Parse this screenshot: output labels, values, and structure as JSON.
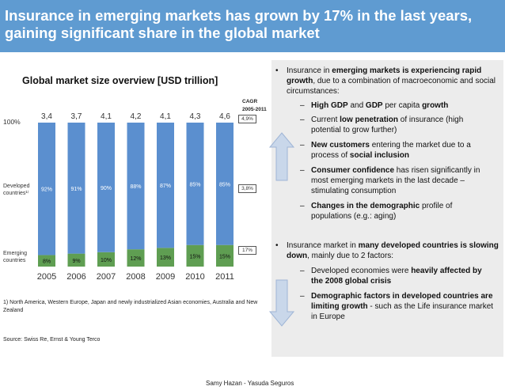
{
  "title": {
    "line1": "Insurance in emerging markets has grown by 17% in the last years,",
    "line2": "gaining significant share in the global market"
  },
  "colors": {
    "title_bg": "#5f9bd1",
    "developed": "#5b8fcf",
    "emerging": "#5f9e52",
    "panel_bg": "#ececec",
    "arrow": "#c9d7ea"
  },
  "chart_data": {
    "type": "bar",
    "title": "Global market size overview [USD trillion]",
    "categories": [
      "2005",
      "2006",
      "2007",
      "2008",
      "2009",
      "2010",
      "2011"
    ],
    "totals": [
      "3,4",
      "3,7",
      "4,1",
      "4,2",
      "4,1",
      "4,3",
      "4,6"
    ],
    "series": [
      {
        "name": "Developed countries",
        "values": [
          92,
          91,
          90,
          88,
          87,
          85,
          85
        ],
        "labels": [
          "92%",
          "91%",
          "90%",
          "88%",
          "87%",
          "85%",
          "85%"
        ]
      },
      {
        "name": "Emerging countries",
        "values": [
          8,
          9,
          10,
          12,
          13,
          15,
          15
        ],
        "labels": [
          "8%",
          "9%",
          "10%",
          "12%",
          "13%",
          "15%",
          "15%"
        ]
      }
    ],
    "ylim": [
      0,
      100
    ],
    "y_label_top": "100%",
    "developed_label": "Developed countries¹⁾",
    "emerging_label": "Emerging countries",
    "cagr_title": "CAGR",
    "cagr_period": "2005-2011",
    "cagr_total": "4,9%",
    "cagr_developed": "3,8%",
    "cagr_emerging": "17%"
  },
  "footnote": "1) North America, Western Europe, Japan and newly industrialized Asian economies, Australia and New Zealand",
  "source": "Source: Swiss Re, Ernst & Young Terco",
  "footer": "Samy Hazan -  Yasuda Seguros",
  "panel": {
    "b1_pre": "Insurance in ",
    "b1_bold": "emerging markets is experiencing rapid growth",
    "b1_post": ", due to a combination of macroeconomic and social circumstances:",
    "s1_bold1": "High GDP",
    "s1_mid": " and ",
    "s1_bold2": "GDP",
    "s1_mid2": " per capita ",
    "s1_bold3": "growth",
    "s2_pre": "Current ",
    "s2_bold": "low penetration",
    "s2_post": " of insurance (high potential to grow further)",
    "s3_bold1": "New customers",
    "s3_mid": " entering the market due to a process of ",
    "s3_bold2": "social inclusion",
    "s4_bold": "Consumer confidence",
    "s4_post": " has risen significantly in most emerging markets in the last decade – stimulating consumption",
    "s5_bold": "Changes in the demographic",
    "s5_post": " profile of populations (e.g.: aging)",
    "b2_pre": "Insurance market in ",
    "b2_bold1": "many developed countries is slowing down",
    "b2_post": ", mainly due to 2 factors:",
    "s6_pre": "Developed economies were ",
    "s6_bold": "heavily affected by the 2008 global crisis",
    "s7_bold": "Demographic factors in developed countries are limiting growth",
    "s7_post": " - such as the Life insurance market in Europe",
    "bullet_char": "•",
    "dash_char": "–"
  }
}
